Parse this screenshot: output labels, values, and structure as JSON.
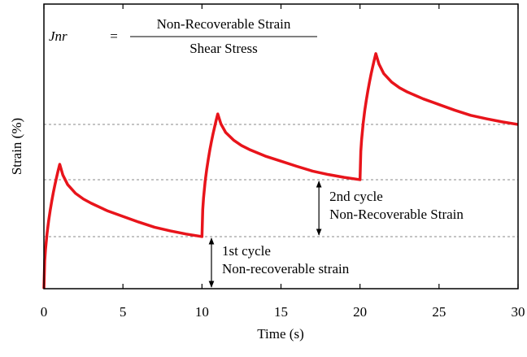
{
  "chart_data": {
    "type": "line",
    "xlabel": "Time (s)",
    "ylabel": "Strain (%)",
    "formula": {
      "lhs": "Jnr",
      "equals": "=",
      "numerator": "Non-Recoverable Strain",
      "denominator": "Shear Stress"
    },
    "xlim": [
      0,
      30
    ],
    "xticks": [
      0,
      5,
      10,
      15,
      20,
      25,
      30
    ],
    "ylim": [
      0,
      100
    ],
    "hlines": [
      18.3,
      38.3,
      57.7
    ],
    "annotations": [
      {
        "lines": [
          "1st cycle",
          "Non-recoverable strain"
        ],
        "x": 10.6,
        "y_from": 0,
        "y_to": 18.3
      },
      {
        "lines": [
          "2nd cycle",
          "Non-Recoverable Strain"
        ],
        "x": 17.4,
        "y_from": 18.3,
        "y_to": 38.3
      }
    ],
    "series": [
      {
        "name": "Strain",
        "color": "#e8141b",
        "x": [
          0,
          0.05,
          0.1,
          0.2,
          0.3,
          0.4,
          0.5,
          0.6,
          0.7,
          0.8,
          0.9,
          1,
          1.2,
          1.5,
          2,
          2.5,
          3,
          4,
          5,
          6,
          7,
          8,
          9,
          10,
          10.05,
          10.1,
          10.2,
          10.3,
          10.4,
          10.5,
          10.6,
          10.7,
          10.8,
          10.9,
          11,
          11.2,
          11.5,
          12,
          12.5,
          13,
          14,
          15,
          16,
          17,
          18,
          19,
          20,
          20.05,
          20.1,
          20.2,
          20.3,
          20.4,
          20.5,
          20.6,
          20.7,
          20.8,
          20.9,
          21,
          21.2,
          21.5,
          22,
          22.5,
          23,
          24,
          25,
          26,
          27,
          28,
          29,
          30
        ],
        "values": [
          0,
          9.8,
          13.8,
          19.5,
          23.9,
          27.6,
          30.9,
          33.9,
          36.6,
          39.1,
          41.5,
          43.7,
          39.9,
          36.6,
          33.5,
          31.5,
          30.0,
          27.4,
          25.4,
          23.4,
          21.6,
          20.3,
          19.2,
          18.3,
          27.9,
          31.9,
          37.6,
          41.9,
          45.5,
          48.8,
          51.7,
          54.4,
          56.8,
          59.2,
          61.4,
          57.9,
          54.9,
          52.2,
          50.3,
          48.9,
          46.6,
          44.8,
          43.0,
          41.3,
          40.1,
          39.1,
          38.3,
          48.2,
          52.3,
          58.1,
          62.6,
          66.3,
          69.6,
          72.6,
          75.4,
          77.9,
          80.3,
          82.6,
          78.9,
          75.6,
          72.6,
          70.6,
          69.1,
          66.7,
          64.7,
          62.7,
          60.9,
          59.7,
          58.6,
          57.7
        ]
      }
    ]
  }
}
